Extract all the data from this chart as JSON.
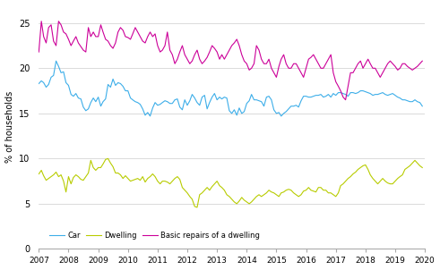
{
  "title": "",
  "ylabel": "% of households",
  "ylim": [
    0,
    27
  ],
  "yticks": [
    0,
    5,
    10,
    15,
    20,
    25
  ],
  "xtick_years": [
    2007,
    2008,
    2009,
    2010,
    2011,
    2012,
    2013,
    2014,
    2015,
    2016,
    2017,
    2018,
    2019,
    2020
  ],
  "car_color": "#3daee9",
  "dwelling_color": "#b8cc00",
  "repairs_color": "#cc0099",
  "legend_labels": [
    "Car",
    "Dwelling",
    "Basic repairs of a dwelling"
  ],
  "car": [
    18.3,
    18.6,
    18.4,
    17.9,
    18.2,
    19.0,
    19.2,
    20.8,
    20.2,
    19.5,
    19.6,
    18.4,
    18.1,
    17.1,
    16.9,
    17.2,
    16.7,
    16.6,
    15.7,
    15.3,
    15.5,
    16.2,
    16.7,
    16.3,
    16.8,
    15.8,
    16.3,
    16.6,
    18.2,
    17.9,
    18.8,
    18.1,
    18.4,
    18.3,
    18.0,
    17.5,
    17.5,
    16.7,
    16.5,
    16.3,
    16.2,
    16.0,
    15.5,
    14.8,
    15.1,
    14.7,
    15.6,
    16.2,
    15.9,
    16.0,
    16.2,
    16.4,
    16.3,
    16.1,
    16.1,
    16.5,
    16.6,
    15.7,
    15.4,
    16.5,
    15.9,
    16.4,
    17.1,
    16.7,
    16.2,
    15.9,
    16.8,
    17.0,
    15.5,
    16.2,
    16.8,
    17.2,
    16.5,
    16.8,
    16.6,
    16.8,
    16.7,
    15.3,
    15.0,
    15.4,
    14.8,
    15.6,
    15.0,
    15.2,
    16.1,
    16.4,
    17.1,
    16.5,
    16.5,
    16.4,
    16.3,
    15.8,
    16.8,
    16.9,
    16.5,
    15.4,
    15.0,
    15.1,
    14.7,
    15.0,
    15.2,
    15.5,
    15.8,
    15.8,
    15.9,
    15.7,
    16.4,
    16.9,
    16.9,
    16.8,
    16.8,
    16.9,
    17.0,
    17.0,
    17.1,
    16.8,
    16.9,
    17.1,
    16.8,
    17.2,
    17.0,
    17.3,
    17.3,
    17.2,
    17.1,
    16.9,
    17.3,
    17.3,
    17.2,
    17.3,
    17.5,
    17.5,
    17.4,
    17.3,
    17.2,
    17.0,
    17.1,
    17.1,
    17.2,
    17.3,
    17.1,
    17.0,
    17.1,
    17.2,
    17.0,
    16.8,
    16.7,
    16.5,
    16.5,
    16.4,
    16.3,
    16.3,
    16.5,
    16.3,
    16.2,
    15.8
  ],
  "dwelling": [
    8.3,
    8.7,
    8.1,
    7.6,
    7.8,
    8.0,
    8.2,
    8.5,
    8.0,
    8.2,
    7.5,
    6.3,
    8.0,
    7.2,
    7.9,
    8.2,
    8.0,
    7.7,
    7.6,
    8.0,
    8.4,
    9.8,
    9.0,
    8.7,
    9.0,
    9.0,
    9.4,
    9.9,
    10.0,
    9.5,
    9.1,
    8.4,
    8.4,
    8.2,
    7.8,
    8.1,
    7.8,
    7.5,
    7.6,
    7.7,
    7.8,
    7.6,
    8.0,
    7.4,
    7.8,
    8.0,
    8.3,
    8.0,
    7.5,
    7.2,
    7.5,
    7.5,
    7.4,
    7.2,
    7.5,
    7.8,
    8.0,
    7.7,
    6.8,
    6.5,
    6.2,
    5.8,
    5.5,
    4.7,
    4.6,
    6.0,
    6.2,
    6.5,
    6.8,
    6.5,
    6.9,
    7.2,
    7.5,
    7.0,
    6.8,
    6.5,
    6.0,
    5.8,
    5.5,
    5.2,
    5.0,
    5.3,
    5.7,
    5.4,
    5.2,
    5.0,
    5.2,
    5.5,
    5.8,
    6.0,
    5.8,
    6.0,
    6.2,
    6.5,
    6.3,
    6.2,
    6.0,
    5.8,
    6.2,
    6.3,
    6.5,
    6.6,
    6.5,
    6.2,
    6.0,
    5.8,
    6.0,
    6.4,
    6.5,
    6.8,
    6.5,
    6.4,
    6.3,
    6.8,
    6.8,
    6.5,
    6.5,
    6.2,
    6.2,
    6.0,
    5.8,
    6.2,
    7.0,
    7.2,
    7.5,
    7.8,
    8.0,
    8.3,
    8.5,
    8.8,
    9.0,
    9.2,
    9.3,
    8.8,
    8.2,
    7.8,
    7.5,
    7.2,
    7.5,
    7.8,
    7.5,
    7.3,
    7.2,
    7.2,
    7.5,
    7.8,
    8.0,
    8.2,
    8.8,
    9.0,
    9.2,
    9.5,
    9.8,
    9.5,
    9.2,
    9.0
  ],
  "repairs": [
    21.8,
    25.2,
    23.5,
    22.8,
    24.5,
    24.8,
    23.0,
    22.5,
    25.2,
    24.8,
    24.0,
    23.8,
    23.2,
    22.5,
    23.0,
    23.5,
    22.8,
    22.4,
    22.0,
    21.8,
    24.5,
    23.5,
    24.0,
    23.5,
    23.5,
    24.8,
    24.0,
    23.2,
    23.0,
    22.5,
    22.2,
    22.8,
    24.0,
    24.5,
    24.2,
    23.5,
    23.4,
    23.2,
    23.8,
    24.5,
    24.0,
    23.5,
    23.0,
    22.8,
    23.5,
    24.0,
    23.5,
    23.8,
    22.5,
    21.8,
    22.0,
    22.5,
    24.0,
    22.0,
    21.5,
    20.5,
    21.0,
    21.8,
    22.5,
    21.5,
    21.0,
    20.5,
    20.8,
    21.5,
    22.0,
    21.0,
    20.5,
    20.8,
    21.2,
    21.8,
    22.5,
    22.2,
    21.8,
    21.0,
    21.5,
    21.0,
    21.5,
    22.0,
    22.5,
    22.8,
    23.2,
    22.5,
    21.5,
    20.8,
    20.5,
    19.8,
    20.0,
    20.5,
    22.5,
    22.0,
    21.0,
    20.5,
    20.5,
    21.0,
    20.0,
    19.5,
    19.0,
    20.2,
    21.0,
    21.5,
    20.5,
    20.0,
    20.0,
    20.5,
    20.5,
    20.0,
    19.5,
    19.0,
    20.0,
    21.0,
    21.2,
    21.5,
    21.0,
    20.5,
    20.0,
    20.0,
    20.5,
    21.0,
    21.5,
    19.5,
    18.5,
    18.0,
    17.5,
    16.8,
    16.5,
    18.0,
    19.5,
    19.5,
    20.0,
    20.5,
    20.8,
    20.0,
    20.5,
    21.0,
    20.5,
    20.0,
    20.0,
    19.5,
    19.0,
    19.5,
    20.0,
    20.5,
    20.8,
    20.5,
    20.2,
    19.8,
    20.0,
    20.5,
    20.5,
    20.2,
    20.0,
    19.8,
    20.0,
    20.2,
    20.5,
    20.8
  ]
}
